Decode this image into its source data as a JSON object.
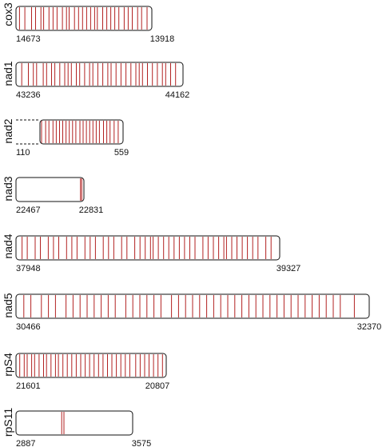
{
  "tracks": [
    {
      "gene": "cox3",
      "start_label": "14673",
      "end_label": "13918",
      "open_left": false,
      "sites": [
        0.02,
        0.06,
        0.11,
        0.14,
        0.18,
        0.2,
        0.24,
        0.27,
        0.3,
        0.34,
        0.37,
        0.39,
        0.43,
        0.46,
        0.49,
        0.52,
        0.55,
        0.58,
        0.6,
        0.64,
        0.67,
        0.7,
        0.73,
        0.76,
        0.8,
        0.83,
        0.86,
        0.9,
        0.93,
        0.97
      ]
    },
    {
      "gene": "nad1",
      "start_label": "43236",
      "end_label": "44162",
      "open_left": false,
      "sites": [
        0.03,
        0.07,
        0.1,
        0.12,
        0.16,
        0.18,
        0.21,
        0.23,
        0.26,
        0.29,
        0.31,
        0.33,
        0.36,
        0.38,
        0.41,
        0.44,
        0.46,
        0.49,
        0.52,
        0.55,
        0.57,
        0.6,
        0.63,
        0.66,
        0.69,
        0.72,
        0.74,
        0.76,
        0.79,
        0.82,
        0.85,
        0.88,
        0.9,
        0.93,
        0.96
      ]
    },
    {
      "gene": "nad2",
      "start_label": "110",
      "end_label": "559",
      "open_left": true,
      "sites": [
        0.01,
        0.06,
        0.1,
        0.15,
        0.19,
        0.23,
        0.27,
        0.31,
        0.35,
        0.39,
        0.43,
        0.48,
        0.52,
        0.56,
        0.6,
        0.64,
        0.68,
        0.72,
        0.77,
        0.81,
        0.85,
        0.9,
        0.95
      ]
    },
    {
      "gene": "nad3",
      "start_label": "22467",
      "end_label": "22831",
      "open_left": false,
      "sites": [
        0.96,
        0.98
      ]
    },
    {
      "gene": "nad4",
      "start_label": "37948",
      "end_label": "39327",
      "open_left": false,
      "sites": [
        0.02,
        0.04,
        0.07,
        0.09,
        0.12,
        0.14,
        0.16,
        0.19,
        0.21,
        0.23,
        0.26,
        0.28,
        0.3,
        0.33,
        0.35,
        0.37,
        0.4,
        0.42,
        0.45,
        0.47,
        0.49,
        0.51,
        0.52,
        0.54,
        0.56,
        0.58,
        0.6,
        0.62,
        0.64,
        0.66,
        0.68,
        0.71,
        0.73,
        0.75,
        0.77,
        0.79,
        0.8,
        0.82,
        0.84,
        0.86,
        0.88,
        0.9,
        0.92,
        0.95,
        0.97
      ]
    },
    {
      "gene": "nad5",
      "start_label": "30466",
      "end_label": "32370",
      "open_left": false,
      "sites": [
        0.02,
        0.04,
        0.07,
        0.09,
        0.11,
        0.14,
        0.16,
        0.18,
        0.2,
        0.22,
        0.24,
        0.26,
        0.28,
        0.31,
        0.33,
        0.35,
        0.37,
        0.39,
        0.41,
        0.44,
        0.46,
        0.48,
        0.5,
        0.52,
        0.54,
        0.56,
        0.58,
        0.6,
        0.62,
        0.64,
        0.66,
        0.68,
        0.7,
        0.72,
        0.74,
        0.76,
        0.78,
        0.8,
        0.82,
        0.84,
        0.86,
        0.88,
        0.9,
        0.92,
        0.96
      ]
    },
    {
      "gene": "rpS4",
      "start_label": "21601",
      "end_label": "20807",
      "open_left": false,
      "sites": [
        0.02,
        0.05,
        0.07,
        0.1,
        0.12,
        0.15,
        0.18,
        0.2,
        0.23,
        0.26,
        0.28,
        0.31,
        0.34,
        0.37,
        0.4,
        0.43,
        0.46,
        0.49,
        0.52,
        0.55,
        0.58,
        0.61,
        0.64,
        0.67,
        0.7,
        0.73,
        0.76,
        0.8,
        0.83,
        0.86,
        0.89,
        0.92,
        0.95,
        0.98
      ]
    },
    {
      "gene": "rpS11",
      "start_label": "2887",
      "end_label": "3575",
      "open_left": false,
      "sites": [
        0.39,
        0.41
      ]
    }
  ]
}
